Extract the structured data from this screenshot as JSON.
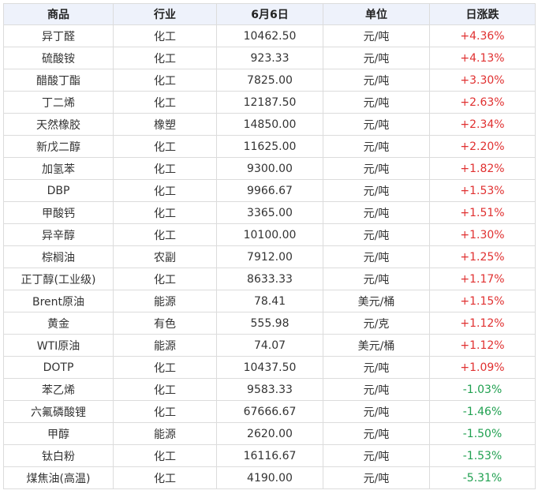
{
  "table": {
    "headers": [
      "商品",
      "行业",
      "6月6日",
      "单位",
      "日涨跌"
    ],
    "rows": [
      {
        "name": "异丁醛",
        "industry": "化工",
        "price": "10462.50",
        "unit": "元/吨",
        "change": "+4.36%",
        "direction": "up"
      },
      {
        "name": "硫酸铵",
        "industry": "化工",
        "price": "923.33",
        "unit": "元/吨",
        "change": "+4.13%",
        "direction": "up"
      },
      {
        "name": "醋酸丁酯",
        "industry": "化工",
        "price": "7825.00",
        "unit": "元/吨",
        "change": "+3.30%",
        "direction": "up"
      },
      {
        "name": "丁二烯",
        "industry": "化工",
        "price": "12187.50",
        "unit": "元/吨",
        "change": "+2.63%",
        "direction": "up"
      },
      {
        "name": "天然橡胶",
        "industry": "橡塑",
        "price": "14850.00",
        "unit": "元/吨",
        "change": "+2.34%",
        "direction": "up"
      },
      {
        "name": "新戊二醇",
        "industry": "化工",
        "price": "11625.00",
        "unit": "元/吨",
        "change": "+2.20%",
        "direction": "up"
      },
      {
        "name": "加氢苯",
        "industry": "化工",
        "price": "9300.00",
        "unit": "元/吨",
        "change": "+1.82%",
        "direction": "up"
      },
      {
        "name": "DBP",
        "industry": "化工",
        "price": "9966.67",
        "unit": "元/吨",
        "change": "+1.53%",
        "direction": "up"
      },
      {
        "name": "甲酸钙",
        "industry": "化工",
        "price": "3365.00",
        "unit": "元/吨",
        "change": "+1.51%",
        "direction": "up"
      },
      {
        "name": "异辛醇",
        "industry": "化工",
        "price": "10100.00",
        "unit": "元/吨",
        "change": "+1.30%",
        "direction": "up"
      },
      {
        "name": "棕榈油",
        "industry": "农副",
        "price": "7912.00",
        "unit": "元/吨",
        "change": "+1.25%",
        "direction": "up"
      },
      {
        "name": "正丁醇(工业级)",
        "industry": "化工",
        "price": "8633.33",
        "unit": "元/吨",
        "change": "+1.17%",
        "direction": "up"
      },
      {
        "name": "Brent原油",
        "industry": "能源",
        "price": "78.41",
        "unit": "美元/桶",
        "change": "+1.15%",
        "direction": "up"
      },
      {
        "name": "黄金",
        "industry": "有色",
        "price": "555.98",
        "unit": "元/克",
        "change": "+1.12%",
        "direction": "up"
      },
      {
        "name": "WTI原油",
        "industry": "能源",
        "price": "74.07",
        "unit": "美元/桶",
        "change": "+1.12%",
        "direction": "up"
      },
      {
        "name": "DOTP",
        "industry": "化工",
        "price": "10437.50",
        "unit": "元/吨",
        "change": "+1.09%",
        "direction": "up"
      },
      {
        "name": "苯乙烯",
        "industry": "化工",
        "price": "9583.33",
        "unit": "元/吨",
        "change": "-1.03%",
        "direction": "down"
      },
      {
        "name": "六氟磷酸锂",
        "industry": "化工",
        "price": "67666.67",
        "unit": "元/吨",
        "change": "-1.46%",
        "direction": "down"
      },
      {
        "name": "甲醇",
        "industry": "能源",
        "price": "2620.00",
        "unit": "元/吨",
        "change": "-1.50%",
        "direction": "down"
      },
      {
        "name": "钛白粉",
        "industry": "化工",
        "price": "16116.67",
        "unit": "元/吨",
        "change": "-1.53%",
        "direction": "down"
      },
      {
        "name": "煤焦油(高温)",
        "industry": "化工",
        "price": "4190.00",
        "unit": "元/吨",
        "change": "-5.31%",
        "direction": "down"
      }
    ]
  },
  "colors": {
    "header_bg": "#eef2fb",
    "up": "#e03030",
    "down": "#20a050",
    "border": "#dcdcdc"
  }
}
